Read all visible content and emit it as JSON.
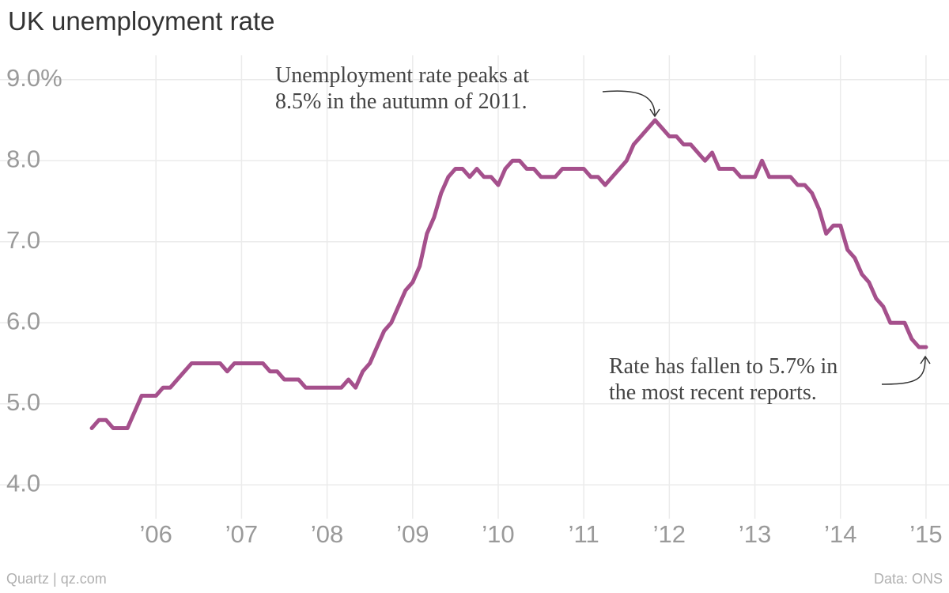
{
  "chart_data": {
    "type": "line",
    "title": "UK unemployment rate",
    "x": [
      2005.25,
      2005.333,
      2005.417,
      2005.5,
      2005.583,
      2005.667,
      2005.75,
      2005.833,
      2005.917,
      2006,
      2006.083,
      2006.167,
      2006.25,
      2006.333,
      2006.417,
      2006.5,
      2006.583,
      2006.667,
      2006.75,
      2006.833,
      2006.917,
      2007,
      2007.083,
      2007.167,
      2007.25,
      2007.333,
      2007.417,
      2007.5,
      2007.583,
      2007.667,
      2007.75,
      2007.833,
      2007.917,
      2008,
      2008.083,
      2008.167,
      2008.25,
      2008.333,
      2008.417,
      2008.5,
      2008.583,
      2008.667,
      2008.75,
      2008.833,
      2008.917,
      2009,
      2009.083,
      2009.167,
      2009.25,
      2009.333,
      2009.417,
      2009.5,
      2009.583,
      2009.667,
      2009.75,
      2009.833,
      2009.917,
      2010,
      2010.083,
      2010.167,
      2010.25,
      2010.333,
      2010.417,
      2010.5,
      2010.583,
      2010.667,
      2010.75,
      2010.833,
      2010.917,
      2011,
      2011.083,
      2011.167,
      2011.25,
      2011.333,
      2011.417,
      2011.5,
      2011.583,
      2011.667,
      2011.75,
      2011.833,
      2011.917,
      2012,
      2012.083,
      2012.167,
      2012.25,
      2012.333,
      2012.417,
      2012.5,
      2012.583,
      2012.667,
      2012.75,
      2012.833,
      2012.917,
      2013,
      2013.083,
      2013.167,
      2013.25,
      2013.333,
      2013.417,
      2013.5,
      2013.583,
      2013.667,
      2013.75,
      2013.833,
      2013.917,
      2014,
      2014.083,
      2014.167,
      2014.25,
      2014.333,
      2014.417,
      2014.5,
      2014.583,
      2014.667,
      2014.75,
      2014.833,
      2014.917,
      2015
    ],
    "series": [
      {
        "color": "#a5508c",
        "values": [
          4.7,
          4.8,
          4.8,
          4.7,
          4.7,
          4.7,
          4.9,
          5.1,
          5.1,
          5.1,
          5.2,
          5.2,
          5.3,
          5.4,
          5.5,
          5.5,
          5.5,
          5.5,
          5.5,
          5.4,
          5.5,
          5.5,
          5.5,
          5.5,
          5.5,
          5.4,
          5.4,
          5.3,
          5.3,
          5.3,
          5.2,
          5.2,
          5.2,
          5.2,
          5.2,
          5.2,
          5.3,
          5.2,
          5.4,
          5.5,
          5.7,
          5.9,
          6.0,
          6.2,
          6.4,
          6.5,
          6.7,
          7.1,
          7.3,
          7.6,
          7.8,
          7.9,
          7.9,
          7.8,
          7.9,
          7.8,
          7.8,
          7.7,
          7.9,
          8.0,
          8.0,
          7.9,
          7.9,
          7.8,
          7.8,
          7.8,
          7.9,
          7.9,
          7.9,
          7.9,
          7.8,
          7.8,
          7.7,
          7.8,
          7.9,
          8.0,
          8.2,
          8.3,
          8.4,
          8.5,
          8.4,
          8.3,
          8.3,
          8.2,
          8.2,
          8.1,
          8.0,
          8.1,
          7.9,
          7.9,
          7.9,
          7.8,
          7.8,
          7.8,
          8.0,
          7.8,
          7.8,
          7.8,
          7.8,
          7.7,
          7.7,
          7.6,
          7.4,
          7.1,
          7.2,
          7.2,
          6.9,
          6.8,
          6.6,
          6.5,
          6.3,
          6.2,
          6.0,
          6.0,
          6.0,
          5.8,
          5.7,
          5.7
        ]
      }
    ],
    "xlim": [
      2005.0,
      2015.25
    ],
    "xticks": [
      {
        "value": 2006,
        "label": "’06"
      },
      {
        "value": 2007,
        "label": "’07"
      },
      {
        "value": 2008,
        "label": "’08"
      },
      {
        "value": 2009,
        "label": "’09"
      },
      {
        "value": 2010,
        "label": "’10"
      },
      {
        "value": 2011,
        "label": "’11"
      },
      {
        "value": 2012,
        "label": "’12"
      },
      {
        "value": 2013,
        "label": "’13"
      },
      {
        "value": 2014,
        "label": "’14"
      },
      {
        "value": 2015,
        "label": "’15"
      }
    ],
    "ylim": [
      3.7,
      9.3
    ],
    "yticks": [
      {
        "value": 4,
        "label": "4.0"
      },
      {
        "value": 5,
        "label": "5.0"
      },
      {
        "value": 6,
        "label": "6.0"
      },
      {
        "value": 7,
        "label": "7.0"
      },
      {
        "value": 8,
        "label": "8.0"
      },
      {
        "value": 9,
        "label": "9.0%"
      }
    ],
    "grid": true,
    "annotations": [
      {
        "lines": [
          "Unemployment rate peaks at",
          "8.5% in the autumn of 2011."
        ]
      },
      {
        "lines": [
          "Rate has fallen to 5.7% in",
          "the most recent reports."
        ]
      }
    ],
    "source": "Data: ONS",
    "credit": "Quartz | qz.com"
  }
}
